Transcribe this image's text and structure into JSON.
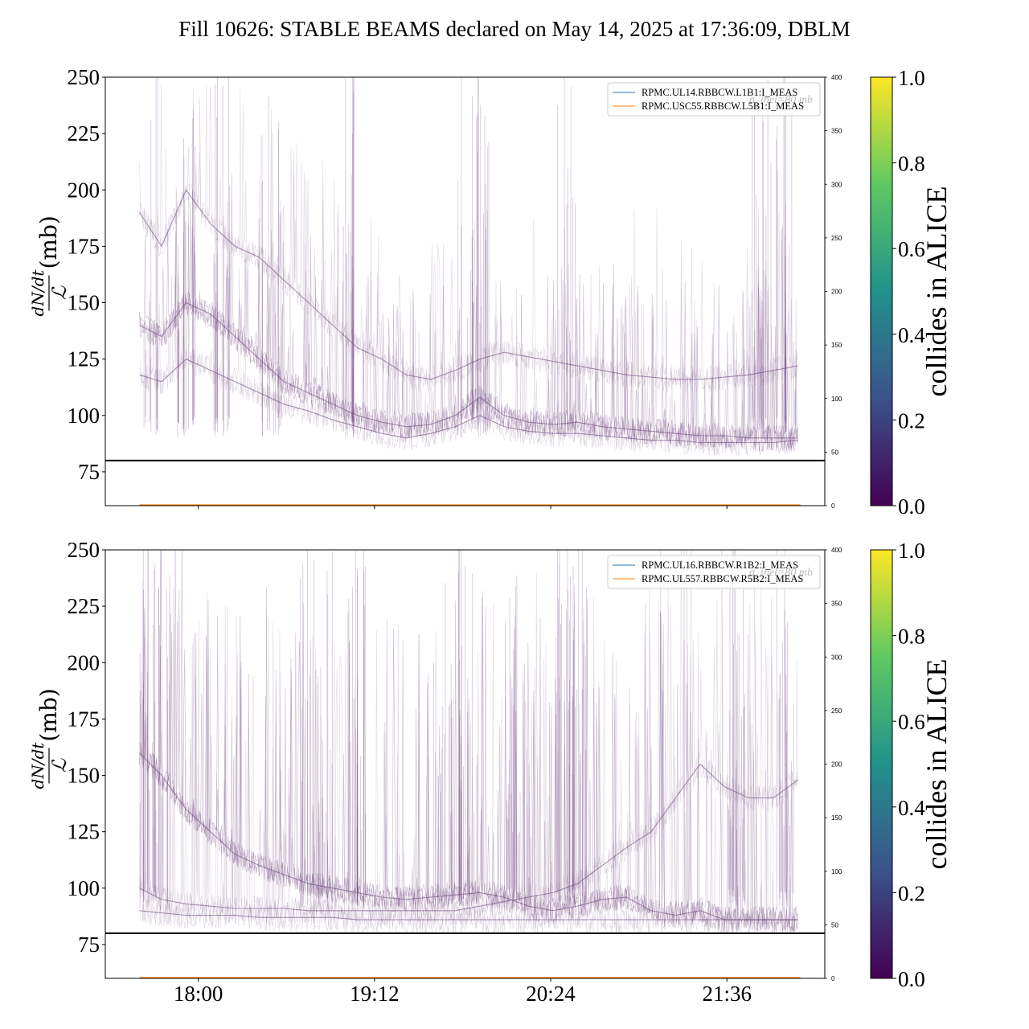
{
  "figure": {
    "title": "Fill 10626: STABLE BEAMS declared on May 14, 2025 at 17:36:09, DBLM",
    "y_label_fraction_numerator": "dN/dt",
    "y_label_fraction_denominator": "ℒ",
    "y_label_unit": "(mb)",
    "colorbar_label": "collides in ALICE",
    "colormap": [
      "#440154",
      "#3b528b",
      "#21918c",
      "#5ec962",
      "#fde725"
    ],
    "line_color": "#6a3d7a",
    "threshold_color": "#000000"
  },
  "chart_data": [
    {
      "type": "line",
      "panel": "top",
      "legend_position": "top-right",
      "legend": [
        {
          "name": "RPMC.UL14.RBBCW.L1B1:I_MEAS",
          "color": "#1f77b4"
        },
        {
          "name": "RPMC.USC55.RBBCW.L5B1:I_MEAS",
          "color": "#ff7f0e"
        }
      ],
      "legend_watermark": "σ_inel=80 mb",
      "ylim": [
        60,
        250
      ],
      "yticks": [
        "75",
        "100",
        "125",
        "150",
        "175",
        "200",
        "225",
        "250"
      ],
      "yticks_values": [
        75,
        100,
        125,
        150,
        175,
        200,
        225,
        250
      ],
      "right_ylim": [
        0,
        400
      ],
      "right_yticks": [
        "0",
        "50",
        "100",
        "150",
        "200",
        "250",
        "300",
        "350",
        "400"
      ],
      "right_yticks_values": [
        0,
        50,
        100,
        150,
        200,
        250,
        300,
        350,
        400
      ],
      "xlim": [
        "17:22",
        "22:16"
      ],
      "xticks": [
        "18:00",
        "19:12",
        "20:24",
        "21:36"
      ],
      "threshold": 80,
      "data_x_range": [
        "17:36",
        "22:06"
      ],
      "series": [
        {
          "x": [
            "17:36",
            "17:45",
            "17:55",
            "18:05",
            "18:15",
            "18:25",
            "18:35",
            "18:45",
            "18:55",
            "19:05",
            "19:15",
            "19:25",
            "19:35",
            "19:45",
            "19:55",
            "20:05",
            "20:15",
            "20:25",
            "20:35",
            "20:45",
            "20:55",
            "21:05",
            "21:15",
            "21:25",
            "21:35",
            "21:45",
            "21:55",
            "22:05"
          ],
          "values": [
            140,
            135,
            150,
            145,
            135,
            125,
            115,
            110,
            105,
            100,
            97,
            95,
            96,
            100,
            108,
            100,
            97,
            96,
            97,
            95,
            94,
            93,
            92,
            91,
            91,
            90,
            90,
            90
          ]
        },
        {
          "x": [
            "17:36",
            "17:45",
            "17:55",
            "18:05",
            "18:15",
            "18:25",
            "18:35",
            "18:45",
            "18:55",
            "19:05",
            "19:15",
            "19:25",
            "19:35",
            "19:45",
            "19:55",
            "20:05",
            "20:15",
            "20:25",
            "20:35",
            "20:45",
            "20:55",
            "21:05",
            "21:15",
            "21:25",
            "21:35",
            "21:45",
            "21:55",
            "22:05"
          ],
          "values": [
            118,
            115,
            125,
            120,
            115,
            110,
            105,
            102,
            98,
            95,
            92,
            90,
            92,
            95,
            100,
            95,
            93,
            92,
            92,
            91,
            90,
            89,
            89,
            88,
            88,
            88,
            88,
            89
          ]
        },
        {
          "x": [
            "17:36",
            "17:45",
            "17:55",
            "18:05",
            "18:15",
            "18:25",
            "18:35",
            "18:45",
            "18:55",
            "19:05",
            "19:15",
            "19:25",
            "19:35",
            "19:45",
            "19:55",
            "20:05",
            "20:15",
            "20:25",
            "20:35",
            "20:45",
            "20:55",
            "21:05",
            "21:15",
            "21:25",
            "21:35",
            "21:45",
            "21:55",
            "22:05"
          ],
          "values": [
            190,
            175,
            200,
            185,
            175,
            170,
            160,
            150,
            140,
            130,
            125,
            118,
            116,
            120,
            125,
            128,
            126,
            124,
            122,
            120,
            118,
            117,
            116,
            116,
            117,
            118,
            120,
            122
          ]
        }
      ]
    },
    {
      "type": "line",
      "panel": "bottom",
      "legend_position": "top-right",
      "legend": [
        {
          "name": "RPMC.UL16.RBBCW.R1B2:I_MEAS",
          "color": "#1f77b4"
        },
        {
          "name": "RPMC.UL557.RBBCW.R5B2:I_MEAS",
          "color": "#ff7f0e"
        }
      ],
      "legend_watermark": "σ_inel=80 mb",
      "ylim": [
        60,
        250
      ],
      "yticks": [
        "75",
        "100",
        "125",
        "150",
        "175",
        "200",
        "225",
        "250"
      ],
      "yticks_values": [
        75,
        100,
        125,
        150,
        175,
        200,
        225,
        250
      ],
      "right_ylim": [
        0,
        400
      ],
      "right_yticks": [
        "0",
        "50",
        "100",
        "150",
        "200",
        "250",
        "300",
        "350",
        "400"
      ],
      "right_yticks_values": [
        0,
        50,
        100,
        150,
        200,
        250,
        300,
        350,
        400
      ],
      "xlim": [
        "17:22",
        "22:16"
      ],
      "xticks": [
        "18:00",
        "19:12",
        "20:24",
        "21:36"
      ],
      "threshold": 80,
      "data_x_range": [
        "17:36",
        "22:06"
      ],
      "series": [
        {
          "x": [
            "17:36",
            "17:45",
            "17:55",
            "18:05",
            "18:15",
            "18:25",
            "18:35",
            "18:45",
            "18:55",
            "19:05",
            "19:15",
            "19:25",
            "19:35",
            "19:45",
            "19:55",
            "20:05",
            "20:15",
            "20:25",
            "20:35",
            "20:45",
            "20:55",
            "21:05",
            "21:15",
            "21:25",
            "21:35",
            "21:45",
            "21:55",
            "22:05"
          ],
          "values": [
            160,
            150,
            135,
            125,
            115,
            110,
            106,
            102,
            100,
            98,
            96,
            95,
            96,
            97,
            98,
            96,
            92,
            90,
            92,
            95,
            96,
            90,
            88,
            90,
            86,
            86,
            86,
            86
          ]
        },
        {
          "x": [
            "17:36",
            "17:45",
            "17:55",
            "18:05",
            "18:15",
            "18:25",
            "18:35",
            "18:45",
            "18:55",
            "19:05",
            "19:15",
            "19:25",
            "19:35",
            "19:45",
            "19:55",
            "20:05",
            "20:15",
            "20:25",
            "20:35",
            "20:45",
            "20:55",
            "21:05",
            "21:15",
            "21:25",
            "21:35",
            "21:45",
            "21:55",
            "22:05"
          ],
          "values": [
            90,
            89,
            88,
            88,
            88,
            87,
            87,
            87,
            87,
            86,
            86,
            86,
            86,
            86,
            86,
            86,
            86,
            86,
            86,
            86,
            86,
            86,
            86,
            86,
            86,
            86,
            86,
            86
          ]
        },
        {
          "x": [
            "17:36",
            "17:45",
            "17:55",
            "18:05",
            "18:15",
            "18:25",
            "18:35",
            "18:45",
            "18:55",
            "19:05",
            "19:15",
            "19:25",
            "19:35",
            "19:45",
            "19:55",
            "20:05",
            "20:15",
            "20:25",
            "20:35",
            "20:45",
            "20:55",
            "21:05",
            "21:15",
            "21:25",
            "21:35",
            "21:45",
            "21:55",
            "22:05"
          ],
          "values": [
            100,
            95,
            93,
            92,
            91,
            91,
            91,
            90,
            90,
            90,
            90,
            90,
            90,
            90,
            92,
            94,
            96,
            98,
            102,
            110,
            118,
            125,
            140,
            155,
            145,
            140,
            140,
            148
          ]
        }
      ]
    }
  ],
  "colorbar": {
    "ticks": [
      "0.0",
      "0.2",
      "0.4",
      "0.6",
      "0.8",
      "1.0"
    ],
    "tick_values": [
      0,
      0.2,
      0.4,
      0.6,
      0.8,
      1.0
    ]
  }
}
